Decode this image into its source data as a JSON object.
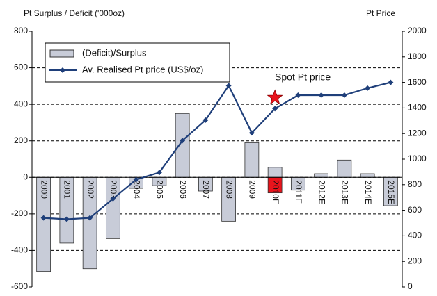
{
  "chart_data": {
    "type": "bar_line",
    "title": "Pt Surplus / Deficit ('000oz)",
    "y2_label": "Pt Price",
    "categories": [
      "2000",
      "2001",
      "2002",
      "2003",
      "2004",
      "2005",
      "2006",
      "2007",
      "2008",
      "2009",
      "2010E",
      "2011E",
      "2012E",
      "2013E",
      "2014E",
      "2015E"
    ],
    "series": [
      {
        "name": "(Deficit)/Surplus",
        "type": "bar",
        "color": "#c8ccd8",
        "values": [
          -515,
          -360,
          -500,
          -335,
          -60,
          -45,
          350,
          -75,
          -240,
          190,
          55,
          -70,
          20,
          95,
          20,
          -155
        ]
      },
      {
        "type": "bar",
        "color": "#e8141c",
        "values": [
          null,
          null,
          null,
          null,
          null,
          null,
          null,
          null,
          null,
          null,
          -85,
          null,
          null,
          null,
          null,
          null
        ]
      },
      {
        "name": "Av. Realised Pt price (US$/oz)",
        "type": "line",
        "axis": "y2",
        "color": "#1f3f7a",
        "values": [
          540,
          530,
          540,
          690,
          840,
          895,
          1145,
          1305,
          1575,
          1205,
          1395,
          1500,
          1500,
          1500,
          1555,
          1600
        ]
      }
    ],
    "annotation": {
      "text": "Spot Pt price",
      "value": 1480,
      "category": "2010E",
      "color": "#e8141c"
    },
    "ylim": [
      -600,
      800
    ],
    "yticks": [
      -600,
      -400,
      -200,
      0,
      200,
      400,
      600,
      800
    ],
    "y2lim": [
      0,
      2000
    ],
    "y2ticks": [
      0,
      200,
      400,
      600,
      800,
      1000,
      1200,
      1400,
      1600,
      1800,
      2000
    ],
    "grid": true,
    "legend": "upper left"
  }
}
